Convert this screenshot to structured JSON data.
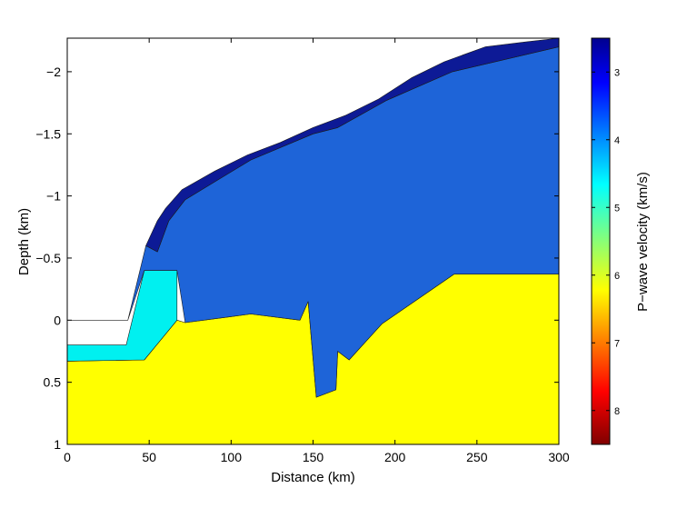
{
  "chart_data": {
    "type": "area",
    "xlabel": "Distance (km)",
    "ylabel": "Depth (km)",
    "xlim": [
      0,
      300
    ],
    "ylim": [
      -2.27,
      1
    ],
    "y_reversed": true,
    "xticks": [
      0,
      50,
      100,
      150,
      200,
      250,
      300
    ],
    "xtick_labels": [
      "0",
      "50",
      "100",
      "150",
      "200",
      "250",
      "300"
    ],
    "yticks": [
      -2,
      -1.5,
      -1,
      -0.5,
      0,
      0.5,
      1
    ],
    "ytick_labels": [
      "−2",
      "−1.5",
      "−1",
      "−0.5",
      "0",
      "0.5",
      "1"
    ],
    "grid": false,
    "colorbar": {
      "label": "P−wave velocity (km/s)",
      "range": [
        2.5,
        8.5
      ],
      "reversed": true,
      "ticks": [
        3,
        4,
        5,
        6,
        7,
        8
      ],
      "tick_labels": [
        "3",
        "4",
        "5",
        "6",
        "7",
        "8"
      ],
      "colormap": "jet"
    },
    "layers": [
      {
        "velocity": 3.0,
        "color": "#0d1a96",
        "top": [
          [
            48,
            -0.6
          ],
          [
            55,
            -0.8
          ],
          [
            60,
            -0.9
          ],
          [
            70,
            -1.05
          ],
          [
            90,
            -1.2
          ],
          [
            110,
            -1.33
          ],
          [
            130,
            -1.43
          ],
          [
            150,
            -1.55
          ],
          [
            170,
            -1.65
          ],
          [
            190,
            -1.78
          ],
          [
            210,
            -1.95
          ],
          [
            230,
            -2.08
          ],
          [
            255,
            -2.2
          ],
          [
            280,
            -2.24
          ],
          [
            300,
            -2.27
          ]
        ],
        "bottom": [
          [
            48,
            -0.6
          ],
          [
            55,
            -0.55
          ],
          [
            62,
            -0.8
          ],
          [
            72,
            -0.97
          ],
          [
            112,
            -1.29
          ],
          [
            150,
            -1.5
          ],
          [
            165,
            -1.55
          ],
          [
            195,
            -1.77
          ],
          [
            235,
            -2.0
          ],
          [
            300,
            -2.2
          ]
        ]
      },
      {
        "velocity": 3.8,
        "color": "#1e64d8",
        "top": [
          [
            0,
            0
          ],
          [
            37,
            0
          ],
          [
            48,
            -0.6
          ],
          [
            55,
            -0.55
          ],
          [
            62,
            -0.8
          ],
          [
            72,
            -0.97
          ],
          [
            112,
            -1.29
          ],
          [
            150,
            -1.5
          ],
          [
            165,
            -1.55
          ],
          [
            195,
            -1.77
          ],
          [
            235,
            -2.0
          ],
          [
            300,
            -2.2
          ]
        ],
        "bottom": [
          [
            0,
            0
          ],
          [
            37,
            0
          ],
          [
            47,
            -0.4
          ],
          [
            67,
            -0.4
          ],
          [
            72,
            0.02
          ],
          [
            112,
            -0.05
          ],
          [
            142,
            0
          ],
          [
            147,
            -0.15
          ],
          [
            152,
            0.62
          ],
          [
            164,
            0.56
          ],
          [
            165,
            0.25
          ],
          [
            172,
            0.32
          ],
          [
            192,
            0.03
          ],
          [
            236,
            -0.37
          ],
          [
            300,
            -0.37
          ]
        ]
      },
      {
        "velocity": 4.7,
        "color": "#00f0f0",
        "top": [
          [
            0,
            0.2
          ],
          [
            36,
            0.2
          ],
          [
            47,
            -0.4
          ],
          [
            67,
            -0.4
          ]
        ],
        "bottom": [
          [
            0,
            0.33
          ],
          [
            47,
            0.32
          ],
          [
            67,
            0
          ]
        ]
      },
      {
        "velocity": 6.0,
        "color": "#ffff00",
        "top": [
          [
            0,
            0.33
          ],
          [
            47,
            0.32
          ],
          [
            67,
            0
          ],
          [
            72,
            0.02
          ],
          [
            112,
            -0.05
          ],
          [
            142,
            0
          ],
          [
            147,
            -0.15
          ],
          [
            152,
            0.62
          ],
          [
            164,
            0.56
          ],
          [
            165,
            0.25
          ],
          [
            172,
            0.32
          ],
          [
            192,
            0.03
          ],
          [
            236,
            -0.37
          ],
          [
            300,
            -0.37
          ]
        ],
        "bottom": [
          [
            0,
            1
          ],
          [
            300,
            1
          ]
        ]
      }
    ]
  }
}
